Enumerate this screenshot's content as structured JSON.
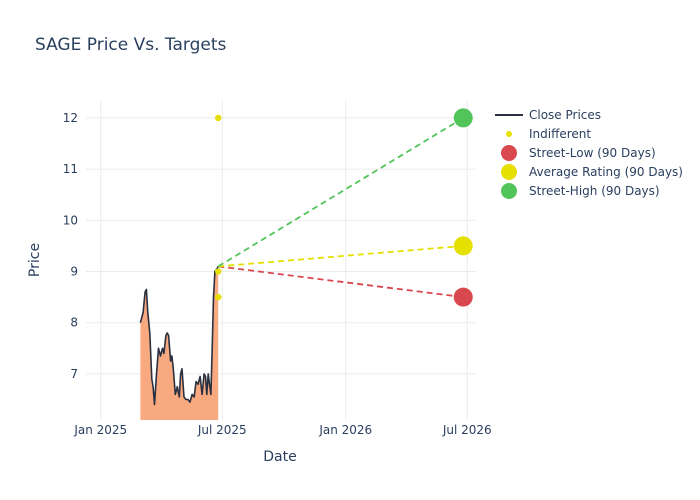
{
  "chart_data": {
    "type": "line",
    "title": "SAGE Price Vs. Targets",
    "xlabel": "Date",
    "ylabel": "Price",
    "x_range": [
      "2024-12-10",
      "2026-07-14"
    ],
    "y_range": [
      6.1,
      12.35
    ],
    "x_ticks": [
      {
        "date": "2025-01-01",
        "label": "Jan 2025"
      },
      {
        "date": "2025-07-01",
        "label": "Jul 2025"
      },
      {
        "date": "2026-01-01",
        "label": "Jan 2026"
      },
      {
        "date": "2026-07-01",
        "label": "Jul 2026"
      }
    ],
    "y_ticks": [
      7,
      8,
      9,
      10,
      11,
      12
    ],
    "grid": true,
    "legend_position": "top-right",
    "close_prices": {
      "name": "Close Prices",
      "color": "#2a3040",
      "fill_color": "#f9a97f",
      "x": [
        "2025-03-01",
        "2025-03-05",
        "2025-03-08",
        "2025-03-10",
        "2025-03-12",
        "2025-03-15",
        "2025-03-18",
        "2025-03-20",
        "2025-03-22",
        "2025-03-25",
        "2025-03-28",
        "2025-03-31",
        "2025-04-03",
        "2025-04-05",
        "2025-04-08",
        "2025-04-10",
        "2025-04-12",
        "2025-04-15",
        "2025-04-17",
        "2025-04-19",
        "2025-04-22",
        "2025-04-25",
        "2025-04-28",
        "2025-04-30",
        "2025-05-02",
        "2025-05-05",
        "2025-05-08",
        "2025-05-11",
        "2025-05-14",
        "2025-05-17",
        "2025-05-20",
        "2025-05-23",
        "2025-05-26",
        "2025-05-29",
        "2025-06-01",
        "2025-06-04",
        "2025-06-06",
        "2025-06-08",
        "2025-06-10",
        "2025-06-12",
        "2025-06-14",
        "2025-06-16",
        "2025-06-18",
        "2025-06-20",
        "2025-06-23",
        "2025-06-25"
      ],
      "y": [
        8.0,
        8.2,
        8.6,
        8.65,
        8.2,
        7.8,
        6.9,
        6.75,
        6.4,
        7.0,
        7.5,
        7.35,
        7.5,
        7.4,
        7.75,
        7.8,
        7.75,
        7.25,
        7.35,
        7.1,
        6.6,
        6.75,
        6.55,
        7.0,
        7.1,
        6.55,
        6.5,
        6.5,
        6.45,
        6.6,
        6.55,
        6.85,
        6.8,
        6.95,
        6.6,
        7.0,
        6.95,
        6.6,
        7.0,
        6.8,
        6.6,
        7.5,
        8.5,
        9.0,
        9.05,
        9.1
      ]
    },
    "indifferent": {
      "name": "Indifferent",
      "color": "#e6e000",
      "x": [
        "2025-06-25",
        "2025-06-25",
        "2025-06-25"
      ],
      "y": [
        12,
        9,
        8.5
      ]
    },
    "targets": [
      {
        "name": "Street-Low (90 Days)",
        "color": "#d9474f",
        "start": {
          "x": "2025-06-25",
          "y": 9.1
        },
        "end": {
          "x": "2026-06-25",
          "y": 8.5
        }
      },
      {
        "name": "Average Rating (90 Days)",
        "color": "#e6e000",
        "start": {
          "x": "2025-06-25",
          "y": 9.1
        },
        "end": {
          "x": "2026-06-25",
          "y": 9.5
        }
      },
      {
        "name": "Street-High (90 Days)",
        "color": "#52c55a",
        "start": {
          "x": "2025-06-25",
          "y": 9.1
        },
        "end": {
          "x": "2026-06-25",
          "y": 12
        }
      }
    ]
  }
}
